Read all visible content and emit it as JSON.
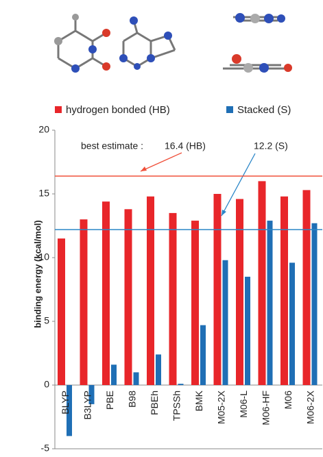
{
  "chart_data": {
    "type": "bar",
    "ylabel": "binding energy (kcal/mol)",
    "categories": [
      "BLYP",
      "B3LYP",
      "PBE",
      "B98",
      "PBEh",
      "TPSSh",
      "BMK",
      "M05-2X",
      "M06-L",
      "M06-HF",
      "M06",
      "M06-2X"
    ],
    "series": [
      {
        "name": "hydrogen bonded (HB)",
        "color": "#e8262a",
        "values": [
          11.5,
          13.0,
          14.4,
          13.8,
          14.8,
          13.5,
          12.9,
          15.0,
          14.6,
          16.0,
          14.8,
          15.3
        ]
      },
      {
        "name": "Stacked (S)",
        "color": "#1f6fb5",
        "values": [
          -4.0,
          -1.5,
          1.6,
          1.0,
          2.4,
          0.1,
          4.7,
          9.8,
          8.5,
          12.9,
          9.6,
          12.7
        ]
      }
    ],
    "ylim": [
      -5,
      20
    ],
    "yticks": [
      -5,
      0,
      5,
      10,
      15,
      20
    ],
    "annotation": "best estimate :",
    "reference_lines": [
      {
        "value": 16.4,
        "label": "16.4 (HB)",
        "color": "#f0503a"
      },
      {
        "value": 12.2,
        "label": "12.2 (S)",
        "color": "#2a86c8"
      }
    ]
  }
}
